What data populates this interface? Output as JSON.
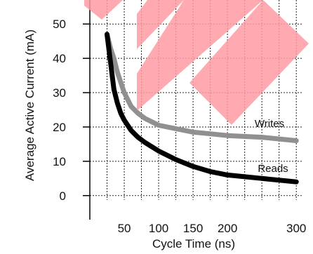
{
  "chart_data": {
    "type": "line",
    "xlabel": "Cycle Time (ns)",
    "ylabel": "Average Active Current (mA)",
    "xlim": [
      0,
      310
    ],
    "ylim": [
      -7,
      57
    ],
    "x_ticks": [
      50,
      100,
      150,
      200,
      300
    ],
    "x_tick_labels": [
      "50",
      "100",
      "150",
      "200",
      "300"
    ],
    "y_ticks": [
      0,
      10,
      20,
      30,
      40,
      50
    ],
    "y_tick_labels": [
      "0",
      "10",
      "20",
      "30",
      "40",
      "50"
    ],
    "x_grid": [
      25,
      50,
      75,
      100,
      125,
      150,
      175,
      200,
      225,
      250,
      275,
      300
    ],
    "grid": true,
    "series": [
      {
        "name": "Writes",
        "color": "#909090",
        "x": [
          25,
          30,
          35,
          40,
          45,
          50,
          60,
          70,
          80,
          100,
          125,
          150,
          175,
          200,
          250,
          300
        ],
        "y": [
          47,
          43,
          40,
          36,
          33,
          30,
          26,
          24,
          22.5,
          20.5,
          19.5,
          18.5,
          18,
          17.5,
          17,
          16
        ]
      },
      {
        "name": "Reads",
        "color": "#000000",
        "x": [
          25,
          30,
          35,
          40,
          45,
          50,
          60,
          70,
          80,
          100,
          125,
          150,
          175,
          200,
          250,
          300
        ],
        "y": [
          47,
          39,
          31,
          27,
          24,
          22,
          19,
          17,
          15.5,
          13,
          10.5,
          8.5,
          7,
          6,
          5,
          4
        ]
      }
    ]
  },
  "watermark": {
    "color": "#ff9aa2",
    "icon": "watermark-chevron-shapes"
  }
}
